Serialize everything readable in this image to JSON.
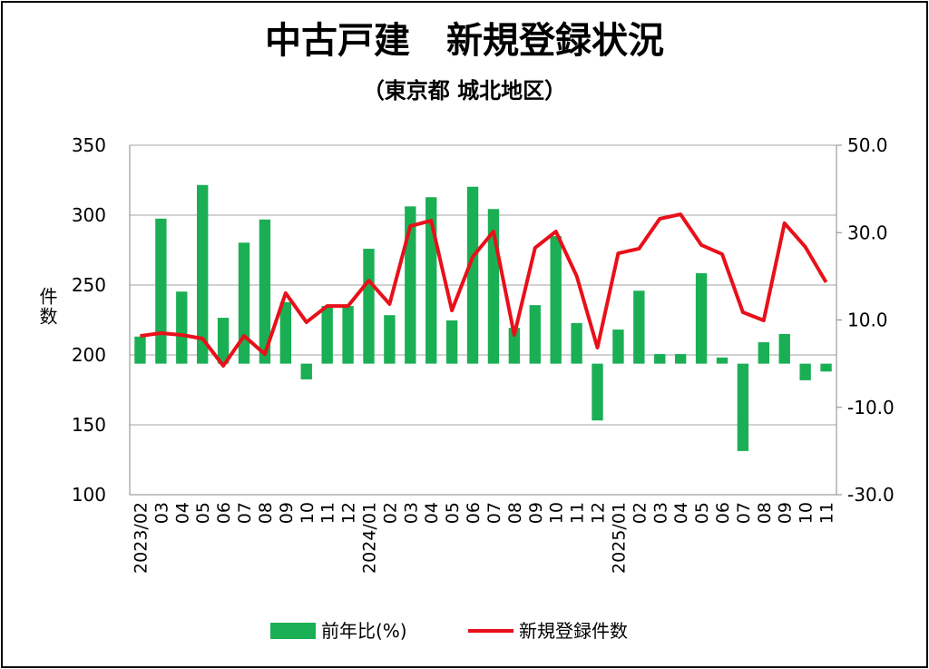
{
  "chart_data": {
    "type": "bar-line",
    "title": "中古戸建　新規登録状況",
    "subtitle": "（東京都 城北地区）",
    "y_label": "件数",
    "categories": [
      "2023/02",
      "03",
      "04",
      "05",
      "06",
      "07",
      "08",
      "09",
      "10",
      "11",
      "12",
      "2024/01",
      "02",
      "03",
      "04",
      "05",
      "06",
      "07",
      "08",
      "09",
      "10",
      "11",
      "12",
      "2025/01",
      "02",
      "03",
      "04",
      "05",
      "06",
      "07",
      "08",
      "09",
      "10",
      "11"
    ],
    "series": [
      {
        "name": "前年比(%)",
        "type": "bar",
        "axis": "y2",
        "color": "#1aaf54",
        "values": [
          6.2,
          33.2,
          16.5,
          40.9,
          10.5,
          27.7,
          33.0,
          14.1,
          -3.6,
          13.2,
          13.2,
          26.3,
          11.1,
          36.0,
          38.1,
          9.9,
          40.5,
          35.4,
          8.2,
          13.4,
          29.2,
          9.3,
          -13.0,
          7.8,
          16.7,
          2.2,
          2.2,
          20.7,
          1.4,
          -20.0,
          4.9,
          6.8,
          -3.8,
          -1.8
        ]
      },
      {
        "name": "新規登録件数",
        "type": "line",
        "axis": "y",
        "color": "#e8101a",
        "values": [
          213.6,
          215.6,
          214.3,
          211.7,
          192.2,
          213.6,
          200.6,
          244.2,
          223.4,
          235,
          235,
          253.2,
          236.4,
          292.2,
          296.1,
          231.8,
          270.1,
          288.3,
          214.3,
          276.6,
          288.3,
          256.5,
          205.2,
          272.7,
          276,
          297.4,
          300.6,
          278.6,
          272.1,
          230.5,
          224.7,
          294.2,
          277.3,
          252
        ]
      }
    ],
    "ylim": [
      100,
      350
    ],
    "yticks": [
      100,
      150,
      200,
      250,
      300,
      350
    ],
    "y2lim": [
      -30,
      50
    ],
    "y2ticks": [
      {
        "value": -30,
        "label": "-30.0"
      },
      {
        "value": -10,
        "label": "-10.0"
      },
      {
        "value": 10,
        "label": "10.0"
      },
      {
        "value": 30,
        "label": "30.0"
      },
      {
        "value": 50,
        "label": "50.0"
      }
    ],
    "negative_tick_color": "#e8101a",
    "grid": true
  }
}
